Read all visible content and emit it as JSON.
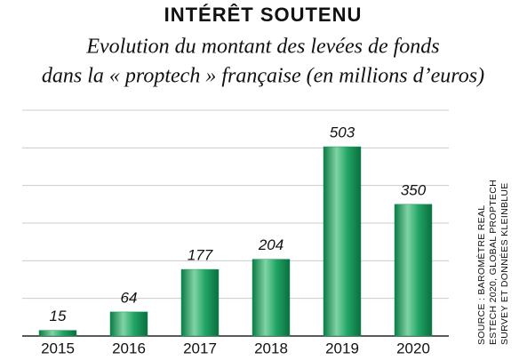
{
  "chart_data": {
    "type": "bar",
    "title": "INTÉRÊT SOUTENU",
    "subtitle": [
      "Evolution du montant des levées de fonds",
      "dans la « proptech » française (en millions d’euros)"
    ],
    "categories": [
      "2015",
      "2016",
      "2017",
      "2018",
      "2019",
      "2020"
    ],
    "values": [
      15,
      64,
      177,
      204,
      503,
      350
    ],
    "color": "#1a9a5c",
    "ylim": [
      0,
      600
    ],
    "yticks": [
      0,
      100,
      200,
      300,
      400,
      500,
      600
    ],
    "grid": true,
    "source": [
      "SOURCE : BAROMÈTRE REAL",
      "ESTECH 2020, GLOBAL PROPTECH",
      "SURVEY ET DONNÉES KLEINBLUE"
    ]
  }
}
